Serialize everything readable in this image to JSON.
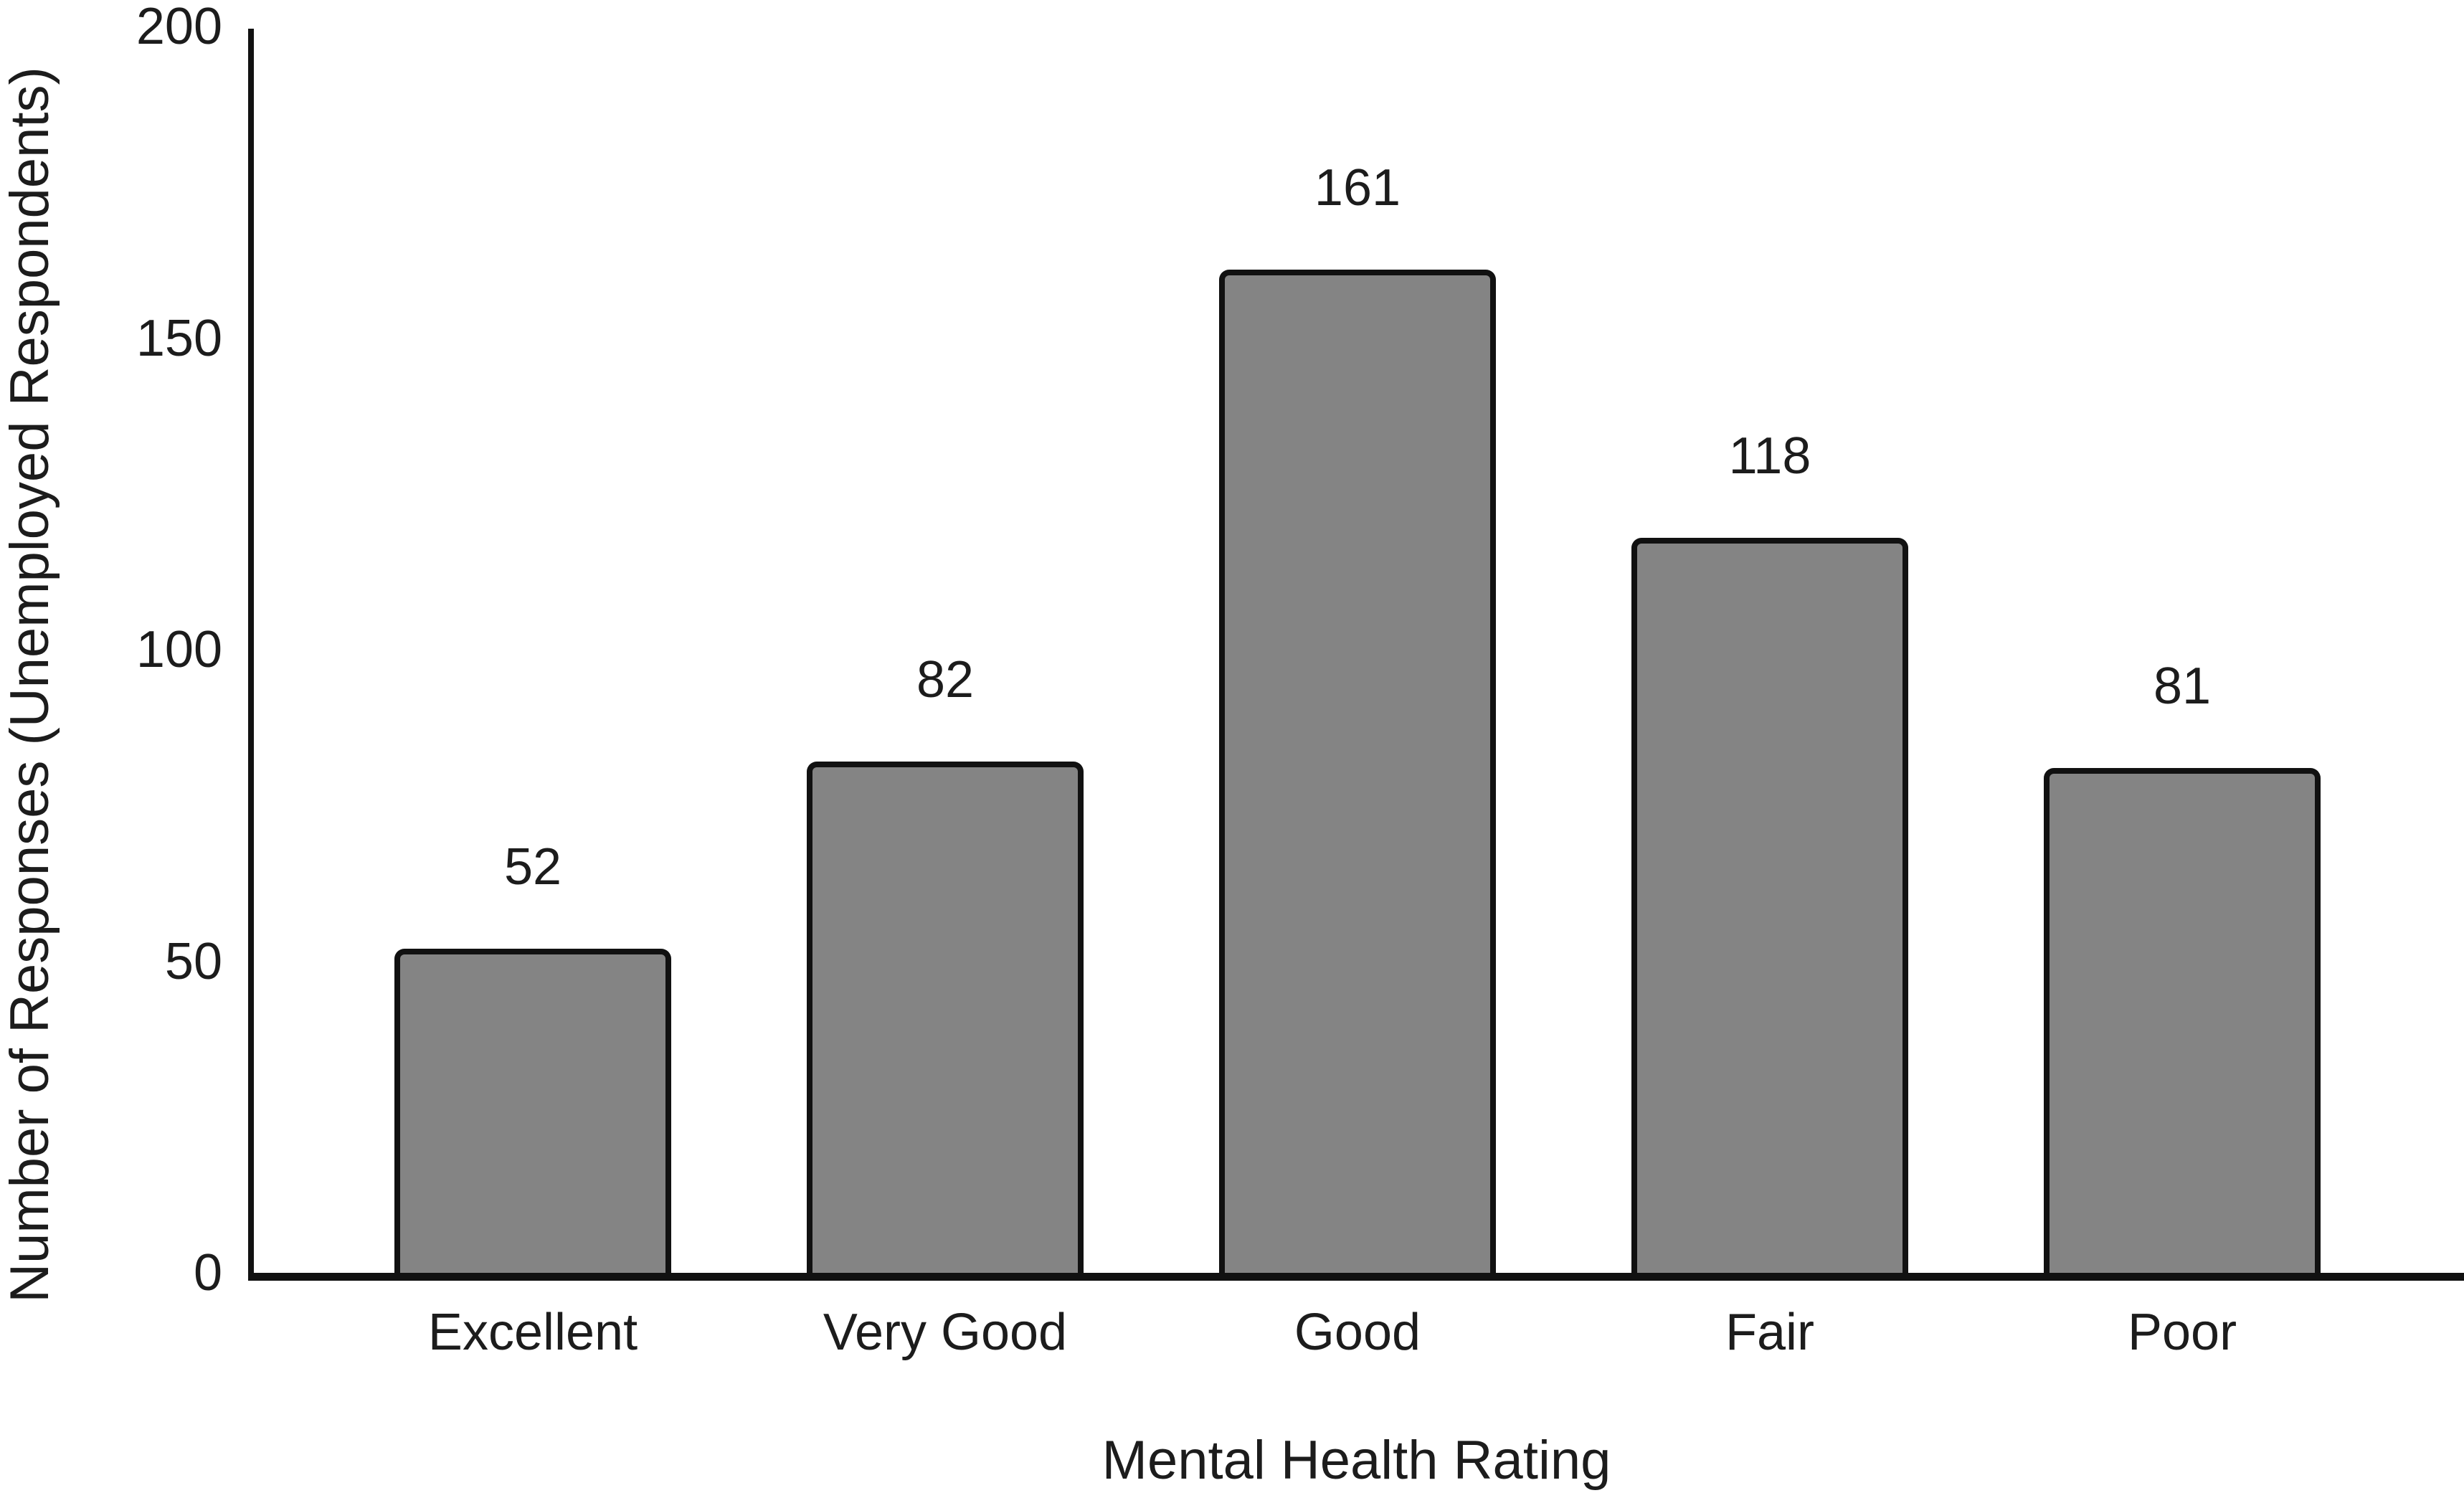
{
  "chart_data": {
    "type": "bar",
    "title": "",
    "categories": [
      "Excellent",
      "Very Good",
      "Good",
      "Fair",
      "Poor"
    ],
    "values": [
      52,
      82,
      161,
      118,
      81
    ],
    "xlabel": "Mental Health Rating",
    "ylabel": "Number of Responses (Unemployed Respondents)",
    "ylim": [
      0,
      200
    ],
    "yticks": [
      0,
      50,
      100,
      150,
      200
    ],
    "grid": false,
    "legend": false,
    "bar_fill_color": "#848484",
    "bar_border_color": "#111111",
    "axis_color": "#111111",
    "text_color": "#1c1c1c",
    "background_color": "#ffffff"
  }
}
